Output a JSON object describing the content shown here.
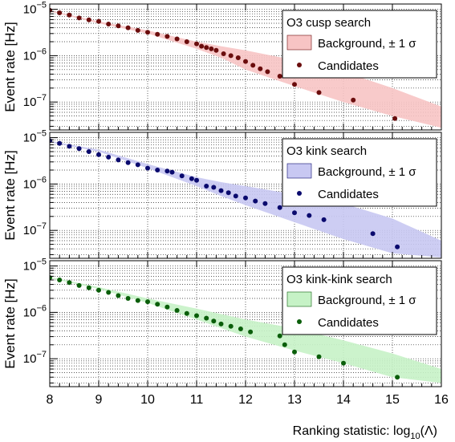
{
  "chart_data": [
    {
      "type": "scatter",
      "ylabel": "Event rate [Hz]",
      "xlim": [
        8,
        16
      ],
      "ylim": [
        2.5e-08,
        1.3e-05
      ],
      "yscale": "log",
      "grid": true,
      "legend_position": "top-right",
      "legend": {
        "title": "O3 cusp search",
        "band_label": "Background, ± 1 σ",
        "points_label": "Candidates"
      },
      "colors": {
        "band": "#f7c4c4",
        "points": "#6b0d0d"
      },
      "series": [
        {
          "name": "Background, ± 1 σ",
          "x": [
            8.0,
            9.0,
            10.0,
            11.0,
            11.5,
            12.0,
            13.0,
            14.0,
            15.0,
            16.0
          ],
          "low": [
            9e-06,
            5e-06,
            3e-06,
            1.4e-06,
            9e-07,
            5e-07,
            2.2e-07,
            1e-07,
            5e-08,
            2.8e-08
          ],
          "high": [
            9.5e-06,
            5.5e-06,
            3.5e-06,
            2e-06,
            1.6e-06,
            1.3e-06,
            8e-07,
            4.5e-07,
            2e-07,
            8e-08
          ]
        },
        {
          "name": "Candidates",
          "x": [
            8.0,
            8.2,
            8.4,
            8.6,
            8.8,
            9.0,
            9.2,
            9.4,
            9.6,
            9.8,
            10.0,
            10.2,
            10.4,
            10.6,
            10.8,
            11.0,
            11.1,
            11.2,
            11.3,
            11.4,
            11.55,
            11.7,
            11.85,
            12.0,
            12.15,
            12.3,
            12.45,
            12.7,
            13.0,
            13.5,
            14.2,
            15.05
          ],
          "y": [
            9.5e-06,
            8.4e-06,
            7.5e-06,
            6.5e-06,
            5.9e-06,
            5.5e-06,
            4.8e-06,
            4.4e-06,
            4e-06,
            3.5e-06,
            3.2e-06,
            2.9e-06,
            2.6e-06,
            2.3e-06,
            2e-06,
            1.8e-06,
            1.6e-06,
            1.5e-06,
            1.4e-06,
            1.3e-06,
            1.1e-06,
            1e-06,
            9e-07,
            7.5e-07,
            6.2e-07,
            5.2e-07,
            4.5e-07,
            3.6e-07,
            2.4e-07,
            1.6e-07,
            1.1e-07,
            4.4e-08
          ]
        }
      ]
    },
    {
      "type": "scatter",
      "ylabel": "Event rate [Hz]",
      "xlim": [
        8,
        16
      ],
      "ylim": [
        2.5e-08,
        1.3e-05
      ],
      "yscale": "log",
      "grid": true,
      "legend_position": "top-right",
      "legend": {
        "title": "O3 kink search",
        "band_label": "Background, ± 1 σ",
        "points_label": "Candidates"
      },
      "colors": {
        "band": "#c8c8f2",
        "points": "#0a0a6e"
      },
      "series": [
        {
          "name": "Background, ± 1 σ",
          "x": [
            8.0,
            9.0,
            10.0,
            11.0,
            11.5,
            12.0,
            13.0,
            14.0,
            15.0,
            16.0
          ],
          "low": [
            8e-06,
            5e-06,
            2.2e-06,
            9e-07,
            5.5e-07,
            3.5e-07,
            1.5e-07,
            6.5e-08,
            3.2e-08,
            2.6e-08
          ],
          "high": [
            8.5e-06,
            5.5e-06,
            2.7e-06,
            1.4e-06,
            1.1e-06,
            9e-07,
            6e-07,
            3.8e-07,
            1.8e-07,
            6e-08
          ]
        },
        {
          "name": "Candidates",
          "x": [
            8.0,
            8.2,
            8.4,
            8.6,
            8.8,
            9.0,
            9.2,
            9.4,
            9.6,
            9.8,
            10.0,
            10.2,
            10.4,
            10.5,
            10.7,
            10.9,
            11.0,
            11.2,
            11.35,
            11.5,
            11.65,
            11.8,
            12.0,
            12.2,
            12.4,
            12.7,
            13.0,
            13.3,
            13.6,
            14.6,
            15.1
          ],
          "y": [
            8.6e-06,
            7.5e-06,
            6.5e-06,
            5.8e-06,
            5e-06,
            4.3e-06,
            3.8e-06,
            3.3e-06,
            2.9e-06,
            2.6e-06,
            2.2e-06,
            2e-06,
            1.9e-06,
            1.8e-06,
            1.5e-06,
            1.3e-06,
            1.2e-06,
            9e-07,
            8.5e-07,
            7.2e-07,
            6.5e-07,
            5.5e-07,
            5e-07,
            4.3e-07,
            3.8e-07,
            3.1e-07,
            2.4e-07,
            2.1e-07,
            1.7e-07,
            8.5e-08,
            4.4e-08
          ]
        }
      ]
    },
    {
      "type": "scatter",
      "ylabel": "Event rate [Hz]",
      "xlabel": "Ranking statistic: log10(Λ)",
      "xlim": [
        8,
        16
      ],
      "ylim": [
        2.5e-08,
        1.3e-05
      ],
      "yscale": "log",
      "grid": true,
      "legend_position": "top-right",
      "legend": {
        "title": "O3 kink-kink search",
        "band_label": "Background, ± 1 σ",
        "points_label": "Candidates"
      },
      "colors": {
        "band": "#c6f2c6",
        "points": "#0a5e0a"
      },
      "series": [
        {
          "name": "Background, ± 1 σ",
          "x": [
            8.0,
            9.0,
            10.0,
            11.0,
            12.0,
            13.0,
            14.0,
            15.0,
            16.0
          ],
          "low": [
            5.5e-06,
            3.2e-06,
            1.6e-06,
            7e-07,
            3e-07,
            1.5e-07,
            8e-08,
            4e-08,
            3e-08
          ],
          "high": [
            5.8e-06,
            3.5e-06,
            2e-06,
            1.2e-06,
            7e-07,
            4.5e-07,
            2.5e-07,
            1.3e-07,
            6e-08
          ]
        },
        {
          "name": "Candidates",
          "x": [
            8.0,
            8.2,
            8.4,
            8.6,
            8.8,
            9.0,
            9.2,
            9.4,
            9.6,
            9.8,
            10.0,
            10.2,
            10.4,
            10.6,
            10.8,
            11.0,
            11.2,
            11.35,
            11.5,
            11.7,
            11.9,
            12.1,
            12.7,
            12.8,
            13.0,
            13.5,
            14.0,
            15.1
          ],
          "y": [
            5.6e-06,
            5e-06,
            4.4e-06,
            3.8e-06,
            3.4e-06,
            3e-06,
            2.7e-06,
            2.3e-06,
            2e-06,
            1.8e-06,
            1.7e-06,
            1.5e-06,
            1.3e-06,
            1.1e-06,
            9.5e-07,
            8.5e-07,
            7.5e-07,
            6.5e-07,
            5.6e-07,
            5e-07,
            4.4e-07,
            3.8e-07,
            3.1e-07,
            2e-07,
            1.4e-07,
            1.1e-07,
            8e-08,
            4e-08
          ]
        }
      ]
    }
  ]
}
